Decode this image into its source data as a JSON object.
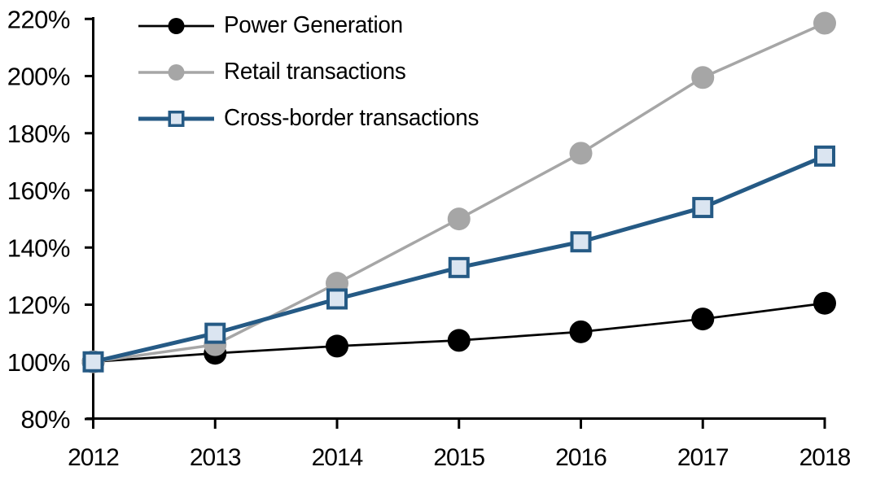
{
  "chart_data": {
    "type": "line",
    "title": "",
    "x": [
      2012,
      2013,
      2014,
      2015,
      2016,
      2017,
      2018
    ],
    "x_axis": {
      "tick_labels": [
        "2012",
        "2013",
        "2014",
        "2015",
        "2016",
        "2017",
        "2018"
      ]
    },
    "y_axis": {
      "min": 80,
      "max": 220,
      "step": 20,
      "unit": "percent",
      "tick_labels": [
        "80%",
        "100%",
        "120%",
        "140%",
        "160%",
        "180%",
        "200%",
        "220%"
      ]
    },
    "grid": false,
    "legend_position": "top-left-inside",
    "series": [
      {
        "name": "Power Generation",
        "color": "#000000",
        "marker": "circle",
        "marker_fill": "#000000",
        "line_width": 2.75,
        "values": [
          100,
          103,
          105.5,
          107.5,
          110.5,
          115,
          120.5
        ]
      },
      {
        "name": "Retail transactions",
        "color": "#a6a6a6",
        "marker": "circle",
        "marker_fill": "#a6a6a6",
        "line_width": 3.5,
        "values": [
          100,
          106,
          127.5,
          150,
          173,
          199.5,
          218.5
        ]
      },
      {
        "name": "Cross-border transactions",
        "color": "#255a85",
        "marker": "square",
        "marker_fill": "#dbe5f1",
        "line_width": 5,
        "values": [
          100,
          110,
          122,
          133,
          142,
          154,
          172
        ]
      }
    ]
  }
}
